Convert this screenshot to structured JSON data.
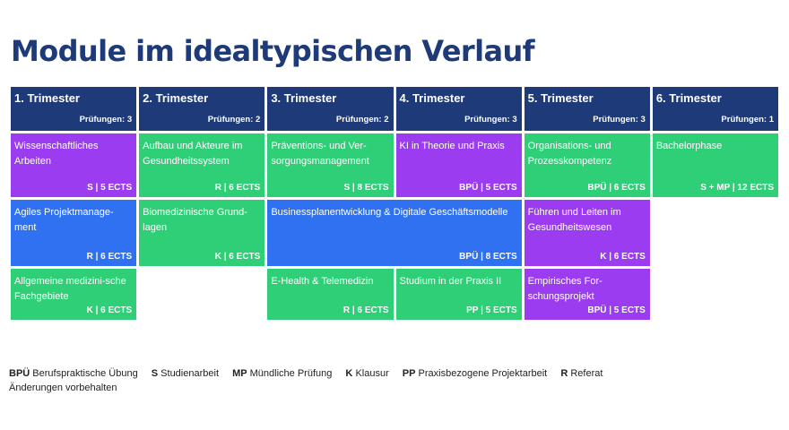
{
  "title": "Module im idealtypischen Verlauf",
  "colors": {
    "header": "#1e3a78",
    "green": "#2ecf76",
    "purple": "#9b3cf0",
    "blue": "#2f71f0"
  },
  "trimesters": [
    {
      "label": "1. Trimester",
      "exams": "Prüfungen: 3"
    },
    {
      "label": "2. Trimester",
      "exams": "Prüfungen: 2"
    },
    {
      "label": "3. Trimester",
      "exams": "Prüfungen: 2"
    },
    {
      "label": "4. Trimester",
      "exams": "Prüfungen: 3"
    },
    {
      "label": "5. Trimester",
      "exams": "Prüfungen: 3"
    },
    {
      "label": "6. Trimester",
      "exams": "Prüfungen: 1"
    }
  ],
  "modules": [
    {
      "name": "Wissenschaftliches Arbeiten",
      "meta": "S | 5 ECTS",
      "color": "purple"
    },
    {
      "name": "Aufbau und Akteure im Gesundheitssystem",
      "meta": "R | 6 ECTS",
      "color": "green"
    },
    {
      "name": "Präventions- und Ver-sorgungsmanagement",
      "meta": "S | 8 ECTS",
      "color": "green"
    },
    {
      "name": "KI in Theorie und Praxis",
      "meta": "BPÜ | 5 ECTS",
      "color": "purple"
    },
    {
      "name": "Organisations- und Prozesskompetenz",
      "meta": "BPÜ | 6 ECTS",
      "color": "green"
    },
    {
      "name": "Bachelorphase",
      "meta": "S + MP | 12 ECTS",
      "color": "green"
    },
    {
      "name": "Agiles Projektmanage-ment",
      "meta": "R | 6 ECTS",
      "color": "blue"
    },
    {
      "name": "Biomedizinische Grund-lagen",
      "meta": "K | 6 ECTS",
      "color": "green"
    },
    {
      "name": "Businessplanentwicklung & Digitale Geschäftsmodelle",
      "meta": "BPÜ | 8 ECTS",
      "color": "blue"
    },
    {
      "name": "Führen und Leiten im Gesundheitswesen",
      "meta": "K | 6 ECTS",
      "color": "purple"
    },
    {
      "name": "Allgemeine medizini-sche Fachgebiete",
      "meta": "K | 6 ECTS",
      "color": "green"
    },
    {
      "name": "E-Health & Telemedizin",
      "meta": "R | 6 ECTS",
      "color": "green"
    },
    {
      "name": "Studium in der Praxis II",
      "meta": "PP | 5 ECTS",
      "color": "green"
    },
    {
      "name": "Empirisches For-schungsprojekt",
      "meta": "BPÜ | 5 ECTS",
      "color": "purple"
    }
  ],
  "legend": [
    {
      "abbr": "BPÜ",
      "text": "Berufspraktische Übung"
    },
    {
      "abbr": "S",
      "text": "Studienarbeit"
    },
    {
      "abbr": "MP",
      "text": "Mündliche Prüfung"
    },
    {
      "abbr": "K",
      "text": "Klausur"
    },
    {
      "abbr": "PP",
      "text": "Praxisbezogene Projektarbeit"
    },
    {
      "abbr": "R",
      "text": "Referat"
    }
  ],
  "note": "Änderungen vorbehalten"
}
